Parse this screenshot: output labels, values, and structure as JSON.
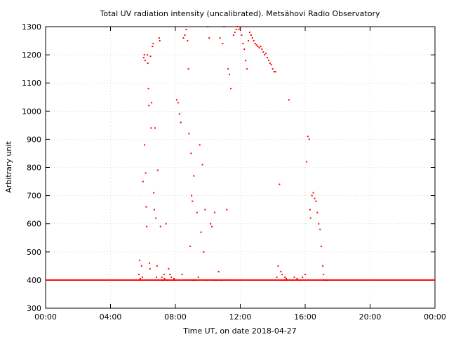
{
  "chart_data": {
    "type": "scatter",
    "title": "Total UV radiation intensity (uncalibrated). Metsähovi Radio Observatory",
    "xlabel": "Time UT, on date 2018-04-27",
    "ylabel": "Arbitrary unit",
    "xlim": [
      "00:00",
      "24:00"
    ],
    "ylim": [
      300,
      1300
    ],
    "x_ticks": [
      "00:00",
      "04:00",
      "08:00",
      "12:00",
      "16:00",
      "20:00",
      "00:00"
    ],
    "y_ticks": [
      300,
      400,
      500,
      600,
      700,
      800,
      900,
      1000,
      1100,
      1200,
      1300
    ],
    "grid": true,
    "point_color": "#ff0000",
    "baseline": {
      "value": 400,
      "from": "00:00",
      "to": "24:00"
    },
    "series": [
      {
        "x": [
          "05:45",
          "05:48",
          "05:50",
          "05:53",
          "05:55",
          "05:58",
          "06:00",
          "06:03",
          "06:05",
          "06:06",
          "06:08",
          "06:10",
          "06:12",
          "06:14",
          "06:16",
          "06:18",
          "06:20",
          "06:22",
          "06:24",
          "06:26",
          "06:28",
          "06:30",
          "06:32",
          "06:35",
          "06:38",
          "06:40",
          "06:42",
          "06:45",
          "06:48",
          "06:50",
          "06:52",
          "06:55",
          "06:58",
          "07:00",
          "07:02",
          "07:05",
          "07:08",
          "07:10",
          "07:12",
          "07:15",
          "07:18",
          "07:20",
          "07:25",
          "07:30",
          "07:35",
          "07:40",
          "07:45",
          "07:50",
          "07:55",
          "08:00",
          "08:05",
          "08:10",
          "08:15",
          "08:20",
          "08:25",
          "08:30",
          "08:35",
          "08:40",
          "08:45",
          "08:48",
          "08:50",
          "08:52",
          "08:55",
          "08:58",
          "09:00",
          "09:03",
          "09:05",
          "09:08",
          "09:10",
          "09:12",
          "09:15",
          "09:20",
          "09:25",
          "09:30",
          "09:35",
          "09:40",
          "09:45",
          "09:50",
          "09:55",
          "10:00",
          "10:05",
          "10:10",
          "10:15",
          "10:20",
          "10:25",
          "10:30",
          "10:35",
          "10:40",
          "10:45",
          "10:50",
          "10:55",
          "11:00",
          "11:05",
          "11:10",
          "11:15",
          "11:20",
          "11:25",
          "11:30",
          "11:35",
          "11:40",
          "11:45",
          "11:50",
          "11:55",
          "12:00",
          "12:05",
          "12:10",
          "12:15",
          "12:20",
          "12:25",
          "12:30",
          "12:35",
          "12:40",
          "12:45",
          "12:50",
          "12:55",
          "13:00",
          "13:05",
          "13:10",
          "13:15",
          "13:20",
          "13:25",
          "13:30",
          "13:35",
          "13:40",
          "13:45",
          "13:50",
          "13:55",
          "14:00",
          "14:05",
          "14:10",
          "14:15",
          "14:20",
          "14:25",
          "14:30",
          "14:35",
          "14:40",
          "14:45",
          "14:50",
          "14:55",
          "15:00",
          "15:10",
          "15:20",
          "15:30",
          "15:40",
          "15:50",
          "16:00",
          "16:05",
          "16:10",
          "16:15",
          "16:18",
          "16:20",
          "16:25",
          "16:30",
          "16:35",
          "16:40",
          "16:45",
          "16:50",
          "16:55",
          "17:00",
          "17:05",
          "17:08",
          "17:10",
          "17:15",
          "17:20"
        ],
        "y": [
          420,
          470,
          405,
          400,
          450,
          410,
          750,
          1190,
          1200,
          880,
          1180,
          780,
          660,
          590,
          1200,
          1170,
          1080,
          1020,
          460,
          440,
          1195,
          940,
          1030,
          1230,
          1240,
          710,
          650,
          940,
          620,
          410,
          450,
          790,
          400,
          1260,
          1250,
          590,
          400,
          410,
          400,
          400,
          420,
          405,
          600,
          400,
          440,
          420,
          410,
          400,
          405,
          400,
          1040,
          1030,
          990,
          960,
          420,
          1260,
          1270,
          1290,
          1250,
          1150,
          920,
          400,
          520,
          850,
          700,
          680,
          400,
          770,
          400,
          400,
          400,
          640,
          410,
          880,
          570,
          810,
          500,
          650,
          400,
          1300,
          1260,
          600,
          590,
          400,
          640,
          400,
          400,
          430,
          1260,
          400,
          1240,
          1300,
          400,
          650,
          1150,
          1130,
          1080,
          400,
          1270,
          1280,
          1290,
          1300,
          1290,
          1295,
          1270,
          1240,
          1220,
          1180,
          1150,
          1250,
          1280,
          1270,
          1260,
          1250,
          1240,
          1235,
          1230,
          1225,
          1230,
          1220,
          1210,
          1200,
          1205,
          1190,
          1180,
          1170,
          1165,
          1150,
          1140,
          1140,
          410,
          450,
          740,
          430,
          420,
          400,
          410,
          405,
          400,
          1040,
          400,
          410,
          405,
          400,
          410,
          420,
          820,
          910,
          900,
          650,
          620,
          700,
          710,
          690,
          680,
          640,
          600,
          580,
          520,
          450,
          420,
          400,
          400,
          400
        ]
      }
    ]
  }
}
